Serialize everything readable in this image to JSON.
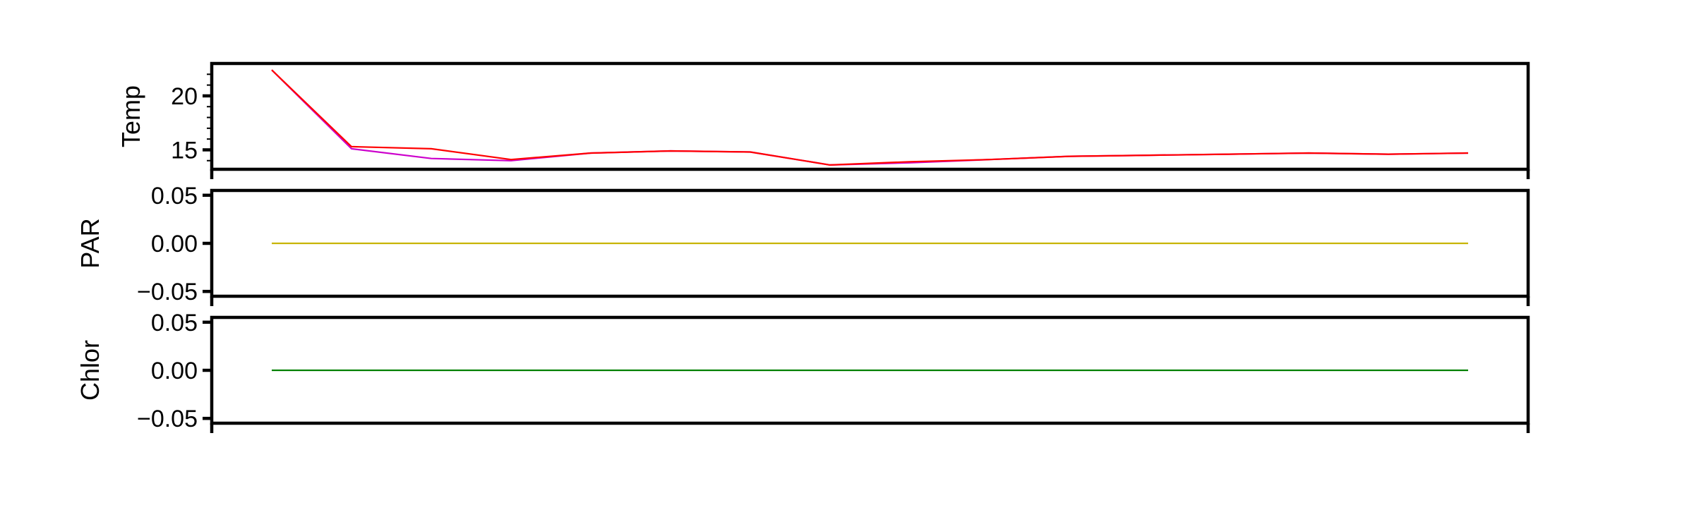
{
  "chart_data": [
    {
      "type": "line",
      "ylabel": "Temp",
      "ylim": [
        13.2,
        23.0
      ],
      "yticks": [
        {
          "value": 20,
          "label": "20"
        },
        {
          "value": 15,
          "label": "15"
        }
      ],
      "yminor": [
        14,
        16,
        17,
        18,
        19,
        21,
        22
      ],
      "x": [
        0,
        1,
        2,
        3,
        4,
        5,
        6,
        7,
        8,
        9,
        10,
        11,
        12,
        13,
        14,
        15
      ],
      "series": [
        {
          "color": "#cc00cc",
          "values": [
            22.4,
            15.1,
            14.2,
            14.0,
            14.7,
            14.9,
            14.8,
            13.6,
            13.8,
            14.1,
            14.4,
            14.5,
            14.6,
            14.7,
            14.6,
            14.7
          ]
        },
        {
          "color": "#ff0000",
          "values": [
            22.4,
            15.3,
            15.1,
            14.1,
            14.7,
            14.9,
            14.8,
            13.6,
            13.9,
            14.1,
            14.4,
            14.5,
            14.6,
            14.7,
            14.6,
            14.7
          ]
        }
      ],
      "grid": false
    },
    {
      "type": "line",
      "ylabel": "PAR",
      "ylim": [
        -0.055,
        0.055
      ],
      "yticks": [
        {
          "value": 0.05,
          "label": "0.05"
        },
        {
          "value": 0.0,
          "label": "0.00"
        },
        {
          "value": -0.05,
          "label": "−0.05"
        }
      ],
      "yminor": [],
      "x": [
        0,
        1,
        2,
        3,
        4,
        5,
        6,
        7,
        8,
        9,
        10,
        11,
        12,
        13,
        14,
        15
      ],
      "series": [
        {
          "color": "#c8b400",
          "values": [
            0,
            0,
            0,
            0,
            0,
            0,
            0,
            0,
            0,
            0,
            0,
            0,
            0,
            0,
            0,
            0
          ]
        }
      ],
      "grid": false
    },
    {
      "type": "line",
      "ylabel": "Chlor",
      "ylim": [
        -0.055,
        0.055
      ],
      "yticks": [
        {
          "value": 0.05,
          "label": "0.05"
        },
        {
          "value": 0.0,
          "label": "0.00"
        },
        {
          "value": -0.05,
          "label": "−0.05"
        }
      ],
      "yminor": [],
      "x": [
        0,
        1,
        2,
        3,
        4,
        5,
        6,
        7,
        8,
        9,
        10,
        11,
        12,
        13,
        14,
        15
      ],
      "series": [
        {
          "color": "#008000",
          "values": [
            0,
            0,
            0,
            0,
            0,
            0,
            0,
            0,
            0,
            0,
            0,
            0,
            0,
            0,
            0,
            0
          ]
        }
      ],
      "grid": false
    }
  ]
}
